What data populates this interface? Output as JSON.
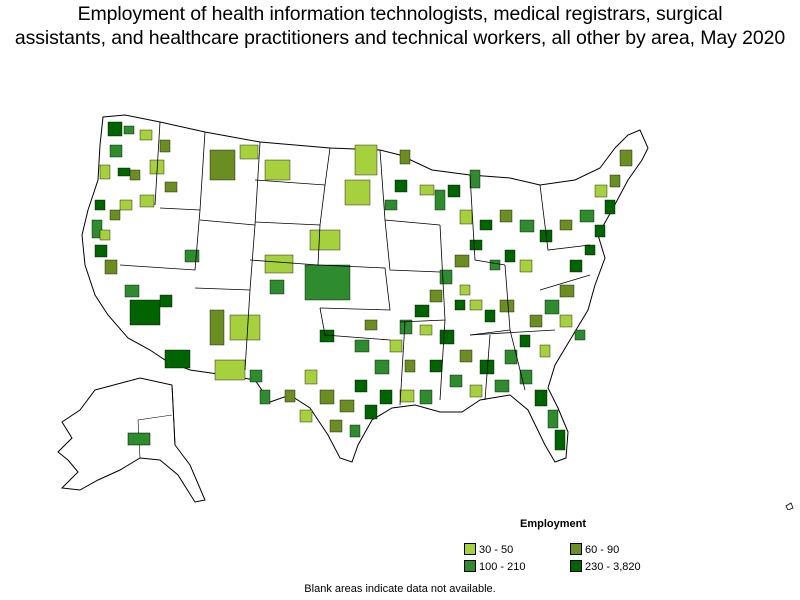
{
  "title": {
    "line1": "Employment of health information technologists, medical registrars, surgical",
    "line2": "assistants, and healthcare practitioners and technical workers, all other by area, May 2020"
  },
  "legend": {
    "title": "Employment",
    "items": [
      {
        "label": "30 - 50",
        "color": "#a6d03c"
      },
      {
        "label": "60 - 90",
        "color": "#6b8e23"
      },
      {
        "label": "100 - 210",
        "color": "#2e8b2e"
      },
      {
        "label": "230 - 3,820",
        "color": "#006400"
      }
    ]
  },
  "footnote": "Blank areas indicate data not available.",
  "colors": {
    "no_data": "#ffffff",
    "border": "#000000"
  }
}
